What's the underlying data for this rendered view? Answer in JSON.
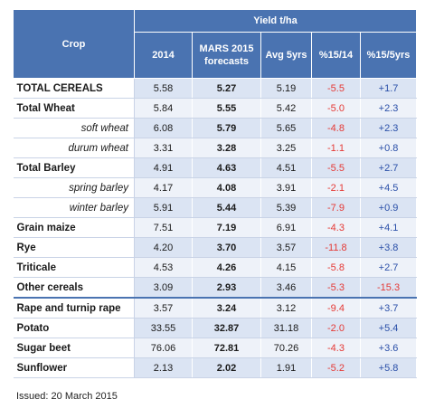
{
  "header": {
    "crop": "Crop",
    "yield": "Yield t/ha",
    "col_2014": "2014",
    "col_mars_line1": "MARS 2015",
    "col_mars_line2": "forecasts",
    "col_avg": "Avg 5yrs",
    "col_p14": "%15/14",
    "col_p5": "%15/5yrs"
  },
  "rows": [
    {
      "crop": "TOTAL CEREALS",
      "y2014": "5.58",
      "mars": "5.27",
      "avg": "5.19",
      "p14": "-5.5",
      "p5": "+1.7"
    },
    {
      "crop": "Total Wheat",
      "y2014": "5.84",
      "mars": "5.55",
      "avg": "5.42",
      "p14": "-5.0",
      "p5": "+2.3"
    },
    {
      "crop": "soft wheat",
      "y2014": "6.08",
      "mars": "5.79",
      "avg": "5.65",
      "p14": "-4.8",
      "p5": "+2.3"
    },
    {
      "crop": "durum wheat",
      "y2014": "3.31",
      "mars": "3.28",
      "avg": "3.25",
      "p14": "-1.1",
      "p5": "+0.8"
    },
    {
      "crop": "Total Barley",
      "y2014": "4.91",
      "mars": "4.63",
      "avg": "4.51",
      "p14": "-5.5",
      "p5": "+2.7"
    },
    {
      "crop": "spring barley",
      "y2014": "4.17",
      "mars": "4.08",
      "avg": "3.91",
      "p14": "-2.1",
      "p5": "+4.5"
    },
    {
      "crop": "winter barley",
      "y2014": "5.91",
      "mars": "5.44",
      "avg": "5.39",
      "p14": "-7.9",
      "p5": "+0.9"
    },
    {
      "crop": "Grain maize",
      "y2014": "7.51",
      "mars": "7.19",
      "avg": "6.91",
      "p14": "-4.3",
      "p5": "+4.1"
    },
    {
      "crop": "Rye",
      "y2014": "4.20",
      "mars": "3.70",
      "avg": "3.57",
      "p14": "-11.8",
      "p5": "+3.8"
    },
    {
      "crop": "Triticale",
      "y2014": "4.53",
      "mars": "4.26",
      "avg": "4.15",
      "p14": "-5.8",
      "p5": "+2.7"
    },
    {
      "crop": "Other cereals",
      "y2014": "3.09",
      "mars": "2.93",
      "avg": "3.46",
      "p14": "-5.3",
      "p5": "-15.3"
    },
    {
      "crop": "Rape and turnip rape",
      "y2014": "3.57",
      "mars": "3.24",
      "avg": "3.12",
      "p14": "-9.4",
      "p5": "+3.7"
    },
    {
      "crop": "Potato",
      "y2014": "33.55",
      "mars": "32.87",
      "avg": "31.18",
      "p14": "-2.0",
      "p5": "+5.4"
    },
    {
      "crop": "Sugar beet",
      "y2014": "76.06",
      "mars": "72.81",
      "avg": "70.26",
      "p14": "-4.3",
      "p5": "+3.6"
    },
    {
      "crop": "Sunflower",
      "y2014": "2.13",
      "mars": "2.02",
      "avg": "1.91",
      "p14": "-5.2",
      "p5": "+5.8"
    }
  ],
  "footer": {
    "issued": "Issued: 20 March 2015"
  },
  "colors": {
    "header_bg": "#4a73b1",
    "row_odd": "#dbe4f3",
    "row_even": "#eef2f9",
    "negative": "#e53935",
    "positive": "#2a4fa8"
  }
}
